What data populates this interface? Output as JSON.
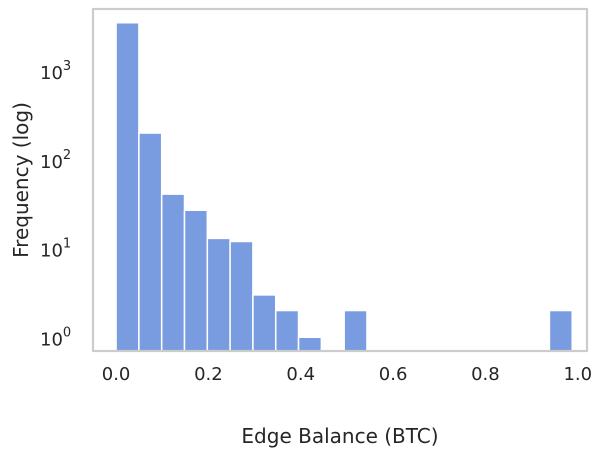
{
  "chart_data": {
    "type": "bar",
    "xlabel": "Edge Balance (BTC)",
    "ylabel": "Frequency (log)",
    "yscale": "log",
    "grid": false,
    "xlim": [
      -0.05,
      1.02
    ],
    "ylim": [
      0.7,
      5000
    ],
    "bin_width": 0.0494,
    "bins": [
      {
        "x0": 0.0,
        "value": 3500
      },
      {
        "x0": 0.0494,
        "value": 200
      },
      {
        "x0": 0.0988,
        "value": 41
      },
      {
        "x0": 0.1482,
        "value": 27
      },
      {
        "x0": 0.1976,
        "value": 13
      },
      {
        "x0": 0.247,
        "value": 12
      },
      {
        "x0": 0.2964,
        "value": 3
      },
      {
        "x0": 0.3458,
        "value": 2
      },
      {
        "x0": 0.3952,
        "value": 1
      },
      {
        "x0": 0.494,
        "value": 2
      },
      {
        "x0": 0.9386,
        "value": 2
      }
    ],
    "xticks": [
      "0.0",
      "0.2",
      "0.4",
      "0.6",
      "0.8",
      "1.0"
    ],
    "xtick_values": [
      0.0,
      0.2,
      0.4,
      0.6,
      0.8,
      1.0
    ],
    "yticks": [
      {
        "value": 1,
        "base": "10",
        "exp": "0"
      },
      {
        "value": 10,
        "base": "10",
        "exp": "1"
      },
      {
        "value": 100,
        "base": "10",
        "exp": "2"
      },
      {
        "value": 1000,
        "base": "10",
        "exp": "3"
      }
    ],
    "colors": {
      "bar": "#799ce0",
      "frame": "#cccccc",
      "text": "#262626"
    }
  }
}
